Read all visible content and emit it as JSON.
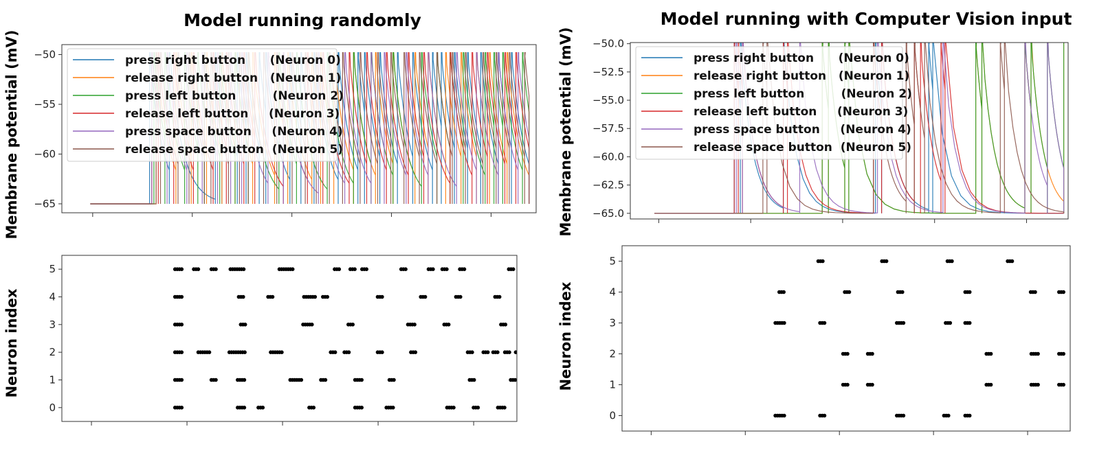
{
  "chart_data": [
    {
      "type": "line",
      "title": "Model running randomly",
      "xlabel": "",
      "ylabel": "Membrane potential (mV)",
      "yticks": [
        -50,
        -55,
        -60,
        -65
      ],
      "ylim": [
        -65.9,
        -49.0
      ],
      "xlim": [
        0,
        1
      ],
      "legend": "top-left",
      "grid": false,
      "series": [
        {
          "name": "press right button      (Neuron 0)",
          "color": "#1f77b4"
        },
        {
          "name": "release right button   (Neuron 1)",
          "color": "#ff7f0e"
        },
        {
          "name": "press left button         (Neuron 2)",
          "color": "#2ca02c"
        },
        {
          "name": "release left button     (Neuron 3)",
          "color": "#d62728"
        },
        {
          "name": "press space button     (Neuron 4)",
          "color": "#9467bd"
        },
        {
          "name": "release space button  (Neuron 5)",
          "color": "#8c564b"
        }
      ],
      "spikes": [
        [
          0.135,
          0.18,
          0.285,
          0.3,
          0.335,
          0.355,
          0.385,
          0.4,
          0.455,
          0.48,
          0.51,
          0.565,
          0.61,
          0.625,
          0.66,
          0.7,
          0.735,
          0.78,
          0.8,
          0.83,
          0.86,
          0.89,
          0.93,
          0.96
        ],
        [
          0.15,
          0.195,
          0.23,
          0.265,
          0.3,
          0.33,
          0.37,
          0.42,
          0.45,
          0.505,
          0.525,
          0.555,
          0.6,
          0.65,
          0.69,
          0.74,
          0.77,
          0.81,
          0.845,
          0.88,
          0.91,
          0.95
        ],
        [
          0.145,
          0.17,
          0.215,
          0.245,
          0.26,
          0.295,
          0.33,
          0.36,
          0.43,
          0.47,
          0.54,
          0.6,
          0.64,
          0.69,
          0.755,
          0.79,
          0.82,
          0.85,
          0.9,
          0.92,
          0.94,
          0.985
        ],
        [
          0.14,
          0.155,
          0.19,
          0.235,
          0.28,
          0.31,
          0.35,
          0.375,
          0.44,
          0.495,
          0.53,
          0.59,
          0.63,
          0.675,
          0.725,
          0.76,
          0.82,
          0.87,
          0.905,
          0.945,
          0.97
        ],
        [
          0.14,
          0.175,
          0.22,
          0.255,
          0.29,
          0.32,
          0.345,
          0.405,
          0.44,
          0.52,
          0.58,
          0.64,
          0.67,
          0.72,
          0.77,
          0.835,
          0.88,
          0.93,
          0.975
        ],
        [
          0.15,
          0.16,
          0.2,
          0.225,
          0.26,
          0.275,
          0.315,
          0.34,
          0.36,
          0.395,
          0.425,
          0.46,
          0.49,
          0.515,
          0.545,
          0.575,
          0.615,
          0.655,
          0.685,
          0.715,
          0.75,
          0.79,
          0.825,
          0.855,
          0.895,
          0.925,
          0.955,
          0.99
        ]
      ]
    },
    {
      "type": "scatter",
      "title": "",
      "xlabel": "",
      "ylabel": "Neuron index",
      "yticks": [
        0,
        1,
        2,
        3,
        4,
        5
      ],
      "ylim": [
        -0.5,
        5.5
      ],
      "xlim": [
        0,
        1
      ],
      "grid": false,
      "clusters": [
        [
          0,
          0.135,
          4
        ],
        [
          0,
          0.295,
          4
        ],
        [
          0,
          0.345,
          3
        ],
        [
          0,
          0.475,
          3
        ],
        [
          0,
          0.595,
          4
        ],
        [
          0,
          0.675,
          4
        ],
        [
          0,
          0.83,
          4
        ],
        [
          0,
          0.895,
          3
        ],
        [
          0,
          0.96,
          4
        ],
        [
          1,
          0.135,
          4
        ],
        [
          1,
          0.225,
          3
        ],
        [
          1,
          0.295,
          4
        ],
        [
          1,
          0.435,
          6
        ],
        [
          1,
          0.505,
          3
        ],
        [
          1,
          0.595,
          4
        ],
        [
          1,
          0.68,
          3
        ],
        [
          1,
          0.885,
          3
        ],
        [
          1,
          0.99,
          3
        ],
        [
          2,
          0.135,
          4
        ],
        [
          2,
          0.2,
          6
        ],
        [
          2,
          0.285,
          8
        ],
        [
          2,
          0.385,
          6
        ],
        [
          2,
          0.53,
          3
        ],
        [
          2,
          0.565,
          3
        ],
        [
          2,
          0.65,
          3
        ],
        [
          2,
          0.735,
          3
        ],
        [
          2,
          0.88,
          3
        ],
        [
          2,
          0.92,
          3
        ],
        [
          2,
          0.945,
          3
        ],
        [
          2,
          0.975,
          3
        ],
        [
          2,
          1.0,
          2
        ],
        [
          3,
          0.135,
          4
        ],
        [
          3,
          0.3,
          3
        ],
        [
          3,
          0.465,
          5
        ],
        [
          3,
          0.575,
          3
        ],
        [
          3,
          0.73,
          4
        ],
        [
          3,
          0.82,
          3
        ],
        [
          3,
          0.965,
          3
        ],
        [
          4,
          0.135,
          4
        ],
        [
          4,
          0.295,
          3
        ],
        [
          4,
          0.37,
          3
        ],
        [
          4,
          0.47,
          6
        ],
        [
          4,
          0.51,
          3
        ],
        [
          4,
          0.65,
          3
        ],
        [
          4,
          0.76,
          3
        ],
        [
          4,
          0.85,
          3
        ],
        [
          4,
          0.95,
          3
        ],
        [
          5,
          0.135,
          4
        ],
        [
          5,
          0.18,
          3
        ],
        [
          5,
          0.225,
          3
        ],
        [
          5,
          0.285,
          7
        ],
        [
          5,
          0.41,
          7
        ],
        [
          5,
          0.54,
          3
        ],
        [
          5,
          0.58,
          3
        ],
        [
          5,
          0.61,
          3
        ],
        [
          5,
          0.71,
          3
        ],
        [
          5,
          0.78,
          3
        ],
        [
          5,
          0.815,
          3
        ],
        [
          5,
          0.86,
          3
        ],
        [
          5,
          0.985,
          3
        ]
      ]
    },
    {
      "type": "line",
      "title": "Model running with Computer Vision input",
      "xlabel": "",
      "ylabel": "Membrane potential (mV)",
      "yticks": [
        -50.0,
        -52.5,
        -55.0,
        -57.5,
        -60.0,
        -62.5,
        -65.0
      ],
      "ylim": [
        -65.5,
        -49.9
      ],
      "xlim": [
        0,
        1
      ],
      "legend": "top-left",
      "grid": false,
      "series": [
        {
          "name": "press right button      (Neuron 0)",
          "color": "#1f77b4"
        },
        {
          "name": "release right button   (Neuron 1)",
          "color": "#ff7f0e"
        },
        {
          "name": "press left button         (Neuron 2)",
          "color": "#2ca02c"
        },
        {
          "name": "release left button     (Neuron 3)",
          "color": "#d62728"
        },
        {
          "name": "press space button     (Neuron 4)",
          "color": "#9467bd"
        },
        {
          "name": "release space button  (Neuron 5)",
          "color": "#8c564b"
        }
      ],
      "spikes": [
        [
          0.195,
          0.21,
          0.315,
          0.54,
          0.555,
          0.67,
          0.68
        ],
        [
          0.41,
          0.425,
          0.465,
          0.475,
          0.785,
          0.8,
          0.905,
          0.92,
          1.0
        ],
        [
          0.41,
          0.425,
          0.465,
          0.475,
          0.785,
          0.8,
          0.905,
          0.92,
          0.96,
          1.0
        ],
        [
          0.195,
          0.205,
          0.215,
          0.315,
          0.325,
          0.535,
          0.555,
          0.635,
          0.65,
          0.7,
          0.71
        ],
        [
          0.2,
          0.215,
          0.355,
          0.545,
          0.705,
          0.905,
          0.96
        ],
        [
          0.265,
          0.275,
          0.535,
          0.615,
          0.635,
          0.66,
          0.845,
          0.855
        ]
      ]
    },
    {
      "type": "scatter",
      "title": "",
      "xlabel": "",
      "ylabel": "Neuron index",
      "yticks": [
        0,
        1,
        2,
        3,
        4,
        5
      ],
      "ylim": [
        -0.5,
        5.5
      ],
      "xlim": [
        0,
        1
      ],
      "grid": false,
      "clusters": [
        [
          0,
          0.205,
          5
        ],
        [
          0,
          0.325,
          3
        ],
        [
          0,
          0.545,
          4
        ],
        [
          0,
          0.675,
          3
        ],
        [
          0,
          0.735,
          3
        ],
        [
          1,
          0.39,
          3
        ],
        [
          1,
          0.46,
          3
        ],
        [
          1,
          0.795,
          3
        ],
        [
          1,
          0.925,
          4
        ],
        [
          1,
          1.0,
          3
        ],
        [
          2,
          0.39,
          3
        ],
        [
          2,
          0.46,
          3
        ],
        [
          2,
          0.795,
          3
        ],
        [
          2,
          0.925,
          4
        ],
        [
          2,
          1.0,
          3
        ],
        [
          3,
          0.205,
          5
        ],
        [
          3,
          0.325,
          3
        ],
        [
          3,
          0.545,
          4
        ],
        [
          3,
          0.68,
          3
        ],
        [
          3,
          0.735,
          3
        ],
        [
          4,
          0.21,
          3
        ],
        [
          4,
          0.395,
          3
        ],
        [
          4,
          0.545,
          3
        ],
        [
          4,
          0.735,
          3
        ],
        [
          4,
          0.92,
          3
        ],
        [
          4,
          1.0,
          3
        ],
        [
          5,
          0.32,
          3
        ],
        [
          5,
          0.5,
          3
        ],
        [
          5,
          0.685,
          3
        ],
        [
          5,
          0.855,
          3
        ]
      ]
    }
  ]
}
